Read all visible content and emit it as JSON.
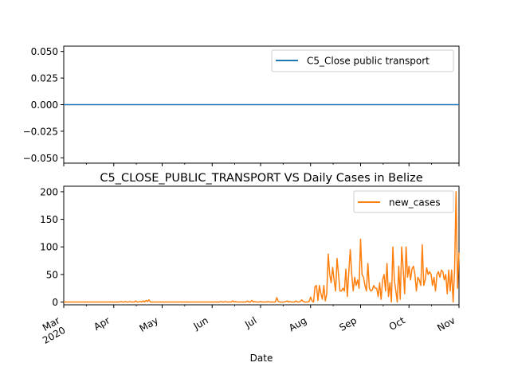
{
  "chart_data": [
    {
      "type": "line",
      "xlabel": "",
      "ylabel": "",
      "ylim": [
        -0.055,
        0.055
      ],
      "yticks": [
        "0.050",
        "0.025",
        "0.000",
        "−0.025",
        "−0.050"
      ],
      "ytick_values": [
        0.05,
        0.025,
        0.0,
        -0.025,
        -0.05
      ],
      "legend_position": "upper-right",
      "grid": false,
      "series": [
        {
          "name": "C5_Close public transport",
          "color": "#1f77b4",
          "x_start": "2020-03-01",
          "x_end": "2020-11-01",
          "values": [
            0,
            0
          ]
        }
      ]
    },
    {
      "type": "line",
      "title": "C5_CLOSE_PUBLIC_TRANSPORT VS Daily Cases in Belize",
      "xlabel": "Date",
      "ylabel": "",
      "ylim": [
        -5,
        210
      ],
      "ytick_values": [
        0,
        50,
        100,
        150,
        200
      ],
      "yticks": [
        "0",
        "50",
        "100",
        "150",
        "200"
      ],
      "x_start": "2020-03-01",
      "x_end": "2020-11-01",
      "xtick_values": [
        "2020-03-01",
        "2020-04-01",
        "2020-05-01",
        "2020-06-01",
        "2020-07-01",
        "2020-08-01",
        "2020-09-01",
        "2020-10-01",
        "2020-11-01"
      ],
      "xtick_labels": [
        "Mar\n2020",
        "Apr",
        "May",
        "Jun",
        "Jul",
        "Aug",
        "Sep",
        "Oct",
        "Nov"
      ],
      "legend_position": "upper-right",
      "grid": false,
      "series": [
        {
          "name": "new_cases",
          "color": "#ff7f0e",
          "values": [
            0,
            0,
            0,
            0,
            0,
            0,
            0,
            0,
            0,
            0,
            0,
            0,
            0,
            0,
            0,
            0,
            0,
            0,
            0,
            0,
            0,
            0,
            0,
            0,
            0,
            0,
            0,
            0,
            0,
            0,
            0,
            0,
            0,
            0,
            0,
            0,
            0,
            0,
            0,
            1,
            0,
            0,
            1,
            0,
            0,
            1,
            0,
            0,
            0,
            2,
            0,
            0,
            1,
            0,
            2,
            0,
            3,
            1,
            4,
            0,
            0,
            0,
            0,
            0,
            0,
            0,
            0,
            0,
            0,
            0,
            0,
            0,
            0,
            0,
            0,
            0,
            0,
            0,
            0,
            0,
            0,
            0,
            0,
            0,
            0,
            0,
            0,
            0,
            0,
            0,
            0,
            0,
            0,
            0,
            0,
            0,
            0,
            0,
            0,
            0,
            0,
            0,
            0,
            0,
            0,
            0,
            0,
            1,
            0,
            0,
            1,
            0,
            0,
            0,
            0,
            2,
            0,
            1,
            0,
            0,
            0,
            0,
            0,
            0,
            0,
            2,
            0,
            0,
            3,
            0,
            1,
            0,
            0,
            0,
            1,
            0,
            0,
            0,
            0,
            1,
            0,
            0,
            0,
            0,
            0,
            8,
            1,
            0,
            0,
            0,
            0,
            1,
            2,
            0,
            1,
            0,
            0,
            0,
            2,
            0,
            0,
            1,
            4,
            1,
            0,
            0,
            0,
            1,
            9,
            2,
            0,
            28,
            30,
            3,
            30,
            15,
            5,
            30,
            2,
            15,
            87,
            50,
            35,
            63,
            40,
            20,
            79,
            50,
            20,
            20,
            25,
            20,
            60,
            10,
            55,
            95,
            50,
            20,
            45,
            30,
            40,
            25,
            114,
            50,
            45,
            30,
            20,
            70,
            25,
            20,
            22,
            30,
            25,
            25,
            10,
            35,
            5,
            40,
            50,
            20,
            70,
            10,
            35,
            0,
            100,
            40,
            20,
            0,
            65,
            5,
            100,
            60,
            15,
            100,
            45,
            65,
            40,
            60,
            65,
            50,
            20,
            45,
            40,
            30,
            104,
            30,
            40,
            62,
            50,
            55,
            50,
            30,
            45,
            20,
            50,
            55,
            45,
            58,
            55,
            40,
            50,
            15,
            58,
            20,
            58,
            0,
            58,
            200,
            25,
            90
          ]
        }
      ]
    }
  ]
}
